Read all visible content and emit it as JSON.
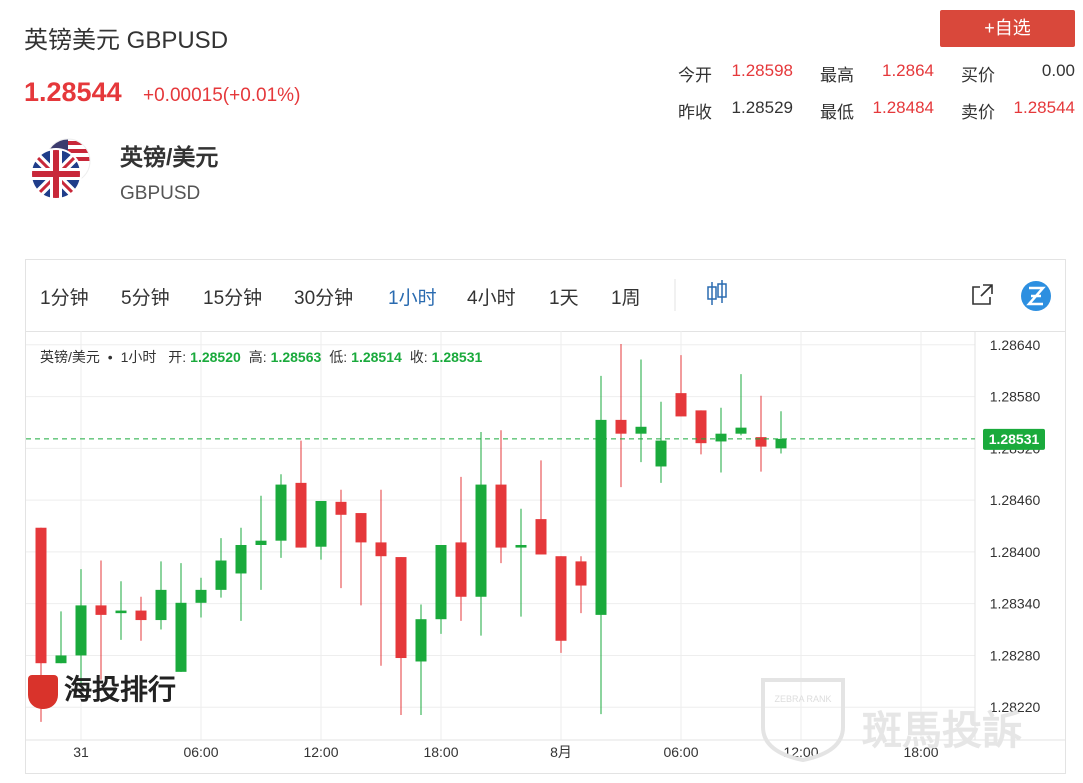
{
  "header": {
    "title": "英镑美元 GBPUSD",
    "price": "1.28544",
    "change": "+0.00015(+0.01%)",
    "button": "+自选"
  },
  "stats": [
    [
      {
        "label": "今开",
        "value": "1.28598",
        "color": "red"
      },
      {
        "label": "最高",
        "value": "1.2864",
        "color": "red"
      },
      {
        "label": "买价",
        "value": "0.00",
        "color": "black"
      }
    ],
    [
      {
        "label": "昨收",
        "value": "1.28529",
        "color": "black"
      },
      {
        "label": "最低",
        "value": "1.28484",
        "color": "red"
      },
      {
        "label": "卖价",
        "value": "1.28544",
        "color": "red"
      }
    ]
  ],
  "instrument": {
    "name": "英镑/美元",
    "code": "GBPUSD"
  },
  "toolbar": {
    "intervals": [
      {
        "label": "1分钟",
        "active": false
      },
      {
        "label": "5分钟",
        "active": false
      },
      {
        "label": "15分钟",
        "active": false
      },
      {
        "label": "30分钟",
        "active": false
      },
      {
        "label": "1小时",
        "active": true
      },
      {
        "label": "4小时",
        "active": false
      },
      {
        "label": "1天",
        "active": false
      },
      {
        "label": "1周",
        "active": false
      }
    ]
  },
  "watermarks": {
    "left": "海投排行",
    "right": "斑馬投訴",
    "badge": "ZEBRA RANK"
  },
  "chart_data": {
    "type": "candlestick",
    "legend": {
      "symbol": "英镑/美元",
      "separator": "•",
      "interval": "1小时",
      "fields": [
        {
          "label": "开:",
          "text": "1.28520"
        },
        {
          "label": "高:",
          "text": "1.28563"
        },
        {
          "label": "低:",
          "text": "1.28514"
        },
        {
          "label": "收:",
          "text": "1.28531"
        }
      ]
    },
    "categories": [
      null,
      null,
      "31",
      null,
      null,
      null,
      null,
      null,
      "06:00",
      null,
      null,
      null,
      null,
      null,
      "12:00",
      null,
      null,
      null,
      null,
      null,
      "18:00",
      null,
      null,
      null,
      null,
      null,
      "8月",
      null,
      null,
      null,
      null,
      null,
      "06:00",
      null,
      null,
      null,
      null,
      null,
      "12:00",
      null,
      null,
      null,
      null,
      null,
      "18:00",
      null,
      null
    ],
    "open": [
      1.28428,
      1.28271,
      1.2828,
      1.28338,
      1.28329,
      1.28332,
      1.28321,
      1.28261,
      1.28341,
      1.28356,
      1.28375,
      1.28408,
      1.28413,
      1.2848,
      1.28406,
      1.28458,
      1.28445,
      1.28411,
      1.28394,
      1.28273,
      1.28322,
      1.28411,
      1.28348,
      1.28478,
      1.28405,
      1.28438,
      1.28395,
      1.28389,
      1.28327,
      1.28553,
      1.28537,
      1.28499,
      1.28584,
      1.28564,
      1.28528,
      1.28537,
      1.28533,
      1.2852,
      null,
      null,
      null,
      null,
      null,
      null,
      null,
      null,
      null
    ],
    "high": [
      1.28428,
      1.28331,
      1.2838,
      1.2839,
      1.28366,
      1.28348,
      1.28389,
      1.28387,
      1.2837,
      1.28416,
      1.28428,
      1.28465,
      1.2849,
      1.28529,
      1.28459,
      1.28472,
      1.28445,
      1.28472,
      1.28394,
      1.28339,
      1.28408,
      1.28487,
      1.28539,
      1.28541,
      1.2845,
      1.28506,
      1.28395,
      1.28395,
      1.28604,
      1.28641,
      1.28623,
      1.28574,
      1.28628,
      1.28564,
      1.28567,
      1.28606,
      1.28581,
      1.28563,
      null,
      null,
      null,
      null,
      null,
      null,
      null,
      null,
      null
    ],
    "low": [
      1.28203,
      1.28271,
      1.28246,
      1.28252,
      1.28298,
      1.28297,
      1.2831,
      1.28261,
      1.28324,
      1.28347,
      1.2832,
      1.28356,
      1.28393,
      1.28405,
      1.28391,
      1.28358,
      1.28338,
      1.28268,
      1.28211,
      1.28211,
      1.28305,
      1.2832,
      1.28303,
      1.28387,
      1.28325,
      1.28397,
      1.28283,
      1.28329,
      1.28212,
      1.28475,
      1.28504,
      1.2848,
      1.28557,
      1.28513,
      1.28492,
      1.28535,
      1.28493,
      1.28514,
      null,
      null,
      null,
      null,
      null,
      null,
      null,
      null,
      null
    ],
    "close": [
      1.28271,
      1.2828,
      1.28338,
      1.28327,
      1.28332,
      1.28321,
      1.28356,
      1.28341,
      1.28356,
      1.2839,
      1.28408,
      1.28413,
      1.28478,
      1.28405,
      1.28459,
      1.28443,
      1.28411,
      1.28395,
      1.28277,
      1.28322,
      1.28408,
      1.28348,
      1.28478,
      1.28405,
      1.28408,
      1.28397,
      1.28297,
      1.28361,
      1.28553,
      1.28537,
      1.28545,
      1.28529,
      1.28557,
      1.28526,
      1.28537,
      1.28544,
      1.28522,
      1.28531,
      null,
      null,
      null,
      null,
      null,
      null,
      null,
      null,
      null
    ],
    "up_color": "#1aaa3c",
    "down_color": "#e5383b",
    "last_price": 1.28531,
    "ylim": [
      1.28182,
      1.28656
    ],
    "yticks": [
      {
        "value": 1.2864,
        "label": "1.28640"
      },
      {
        "value": 1.2858,
        "label": "1.28580"
      },
      {
        "value": 1.2852,
        "label": "1.28520"
      },
      {
        "value": 1.2846,
        "label": "1.28460"
      },
      {
        "value": 1.284,
        "label": "1.28400"
      },
      {
        "value": 1.2834,
        "label": "1.28340"
      },
      {
        "value": 1.2828,
        "label": "1.28280"
      },
      {
        "value": 1.2822,
        "label": "1.28220"
      }
    ],
    "grid": true
  }
}
